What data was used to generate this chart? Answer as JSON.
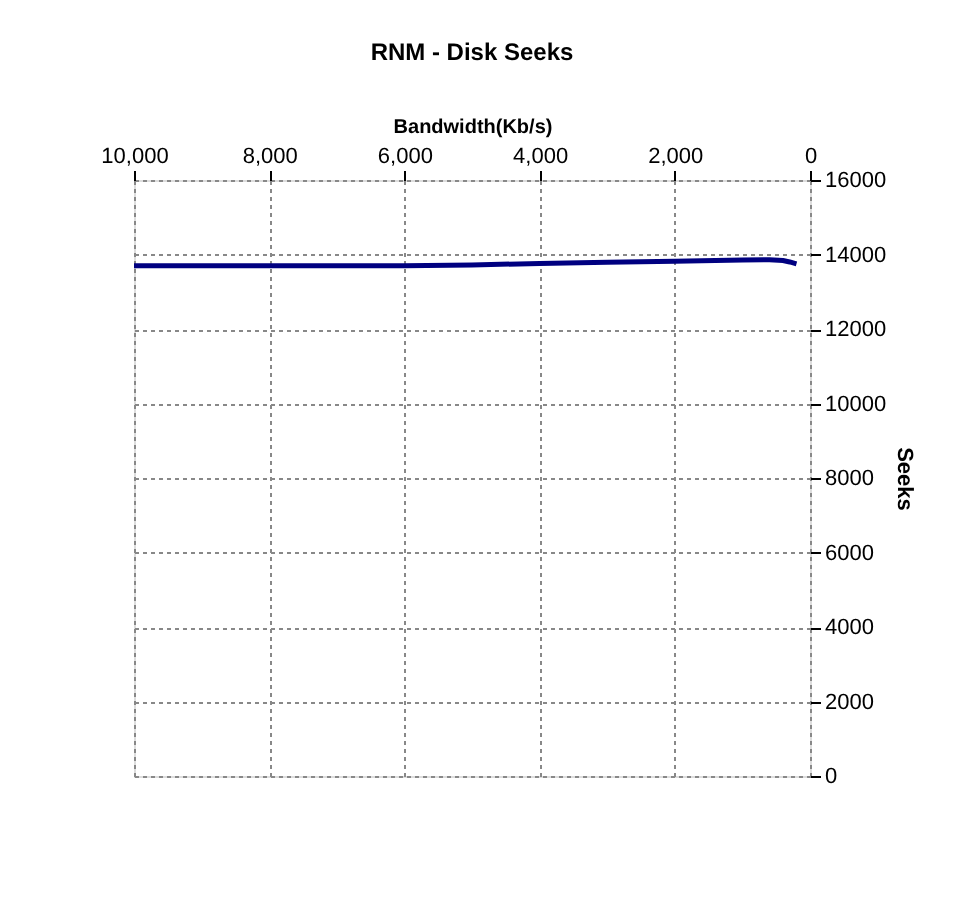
{
  "chart_data": {
    "type": "line",
    "title": "RNM - Disk Seeks",
    "xlabel": "Bandwidth(Kb/s)",
    "ylabel": "Seeks",
    "x": [
      10000,
      8000,
      6000,
      5000,
      4000,
      3000,
      2000,
      1000,
      600,
      400,
      300,
      200
    ],
    "series": [
      {
        "color": "#000080",
        "values": [
          13700,
          13700,
          13700,
          13720,
          13760,
          13790,
          13820,
          13850,
          13860,
          13840,
          13800,
          13750
        ]
      }
    ],
    "xlim": [
      10000,
      0
    ],
    "ylim": [
      0,
      16000
    ],
    "xticks": [
      {
        "value": 10000,
        "label": "10,000"
      },
      {
        "value": 8000,
        "label": "8,000"
      },
      {
        "value": 6000,
        "label": "6,000"
      },
      {
        "value": 4000,
        "label": "4,000"
      },
      {
        "value": 2000,
        "label": "2,000"
      },
      0
    ],
    "yticks": [
      0,
      2000,
      4000,
      6000,
      8000,
      10000,
      12000,
      14000,
      16000
    ],
    "grid": true,
    "marker": "none",
    "line_style": "solid"
  }
}
